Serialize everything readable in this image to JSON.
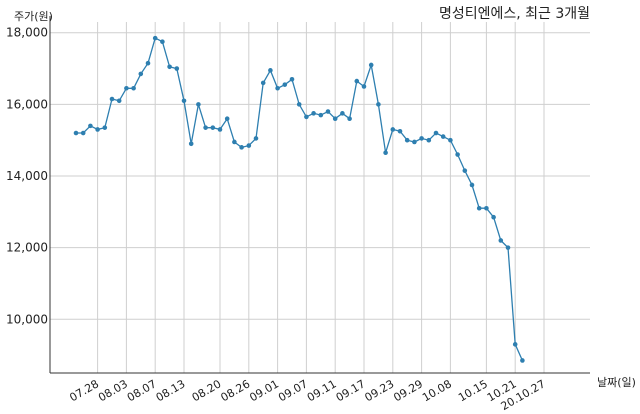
{
  "chart_data": {
    "type": "line",
    "title": "명성티엔에스, 최근 3개월",
    "ylabel": "주가(원)",
    "xlabel": "날짜(일)",
    "ylim": [
      8500,
      18300
    ],
    "yticks": [
      10000,
      12000,
      14000,
      16000,
      18000
    ],
    "ytick_labels": [
      "10,000",
      "12,000",
      "14,000",
      "16,000",
      "18,000"
    ],
    "xtick_labels": [
      "07.28",
      "08.03",
      "08.07",
      "08.13",
      "08.20",
      "08.26",
      "09.01",
      "09.07",
      "09.11",
      "09.17",
      "09.23",
      "09.29",
      "10.08",
      "10.15",
      "10.21",
      "20.10.27"
    ],
    "xtick_index": [
      3,
      7,
      11,
      15,
      20,
      24,
      28,
      32,
      36,
      40,
      44,
      48,
      52,
      57,
      61,
      65
    ],
    "grid": true,
    "series": [
      {
        "color": "#2e7fb0",
        "values": [
          15200,
          15200,
          15400,
          15300,
          15350,
          16150,
          16100,
          16450,
          16450,
          16850,
          17150,
          17850,
          17750,
          17050,
          17000,
          16100,
          14900,
          16000,
          15350,
          15350,
          15300,
          15600,
          14950,
          14800,
          14850,
          15050,
          16600,
          16950,
          16450,
          16550,
          16700,
          16000,
          15650,
          15750,
          15700,
          15800,
          15600,
          15750,
          15600,
          16650,
          16500,
          17100,
          16000,
          14650,
          15300,
          15250,
          15000,
          14950,
          15050,
          15000,
          15200,
          15100,
          15000,
          14600,
          14150,
          13750,
          13100,
          13100,
          12850,
          12200,
          12000,
          9300,
          8850
        ]
      }
    ]
  }
}
